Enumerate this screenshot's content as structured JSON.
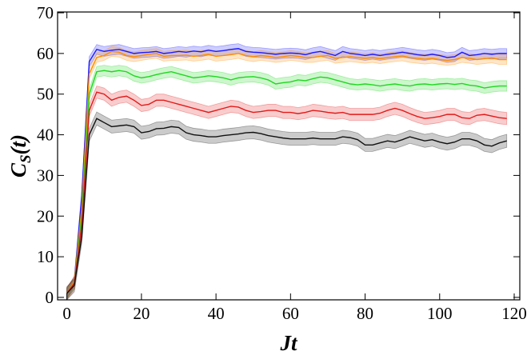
{
  "chart_data": {
    "type": "line",
    "xlabel": "Jt",
    "ylabel": {
      "base": "C",
      "subscript": "S",
      "rest": "(t)"
    },
    "xlim": [
      -2.5,
      121.5
    ],
    "ylim": [
      -0.6,
      70.2
    ],
    "xticks": [
      0,
      20,
      40,
      60,
      80,
      100,
      120
    ],
    "yticks": [
      0,
      10,
      20,
      30,
      40,
      50,
      60,
      70
    ],
    "x": [
      0,
      2,
      4,
      6,
      8,
      10,
      12,
      14,
      16,
      18,
      20,
      22,
      24,
      26,
      28,
      30,
      32,
      34,
      36,
      38,
      40,
      42,
      44,
      46,
      48,
      50,
      52,
      54,
      56,
      58,
      60,
      62,
      64,
      66,
      68,
      70,
      72,
      74,
      76,
      78,
      80,
      82,
      84,
      86,
      88,
      90,
      92,
      94,
      96,
      98,
      100,
      102,
      104,
      106,
      108,
      110,
      112,
      114,
      116,
      118
    ],
    "series": [
      {
        "color": "#1a1aff",
        "error": 1.2,
        "values": [
          1,
          4,
          25,
          58,
          61,
          60.5,
          60.8,
          61,
          60.5,
          60,
          60.2,
          60.3,
          60.5,
          60,
          60.2,
          60.5,
          60.3,
          60.6,
          60.4,
          60.8,
          60.5,
          60.7,
          61,
          61.2,
          60.5,
          60.3,
          60.2,
          60,
          59.8,
          60,
          60.1,
          60,
          59.7,
          60.2,
          60.5,
          60,
          59.5,
          60.5,
          60,
          59.8,
          59.5,
          59.8,
          59.5,
          59.8,
          60,
          60.3,
          60,
          59.7,
          59.5,
          59.8,
          59.5,
          59,
          59.2,
          60.3,
          59.5,
          59.7,
          60,
          59.8,
          60,
          60
        ]
      },
      {
        "color": "#ff8c00",
        "error": 1.2,
        "values": [
          1,
          4,
          22,
          55,
          59,
          59.5,
          60.5,
          60.3,
          59.5,
          59.2,
          59.5,
          59.8,
          60,
          59.3,
          59.5,
          59.5,
          59.6,
          59.3,
          59.5,
          59.8,
          59.3,
          59.5,
          59.7,
          60,
          59.5,
          59.2,
          59.5,
          59.3,
          59,
          59.2,
          59.5,
          59.3,
          59,
          59,
          59.3,
          59.5,
          58.8,
          59,
          59.2,
          59,
          58.8,
          59,
          58.7,
          59,
          59.2,
          59.4,
          59,
          58.8,
          58.6,
          58.8,
          58.5,
          58.3,
          58.5,
          59,
          58.8,
          58.5,
          58.7,
          58.9,
          58.5,
          58.5
        ]
      },
      {
        "color": "#1ed81e",
        "error": 1.3,
        "values": [
          1,
          3.5,
          20,
          50,
          55.5,
          55.8,
          55.5,
          55.8,
          55.5,
          54.5,
          54,
          54.3,
          54.8,
          55.2,
          55.5,
          55,
          54.5,
          54,
          54.2,
          54.5,
          54.3,
          54,
          53.5,
          54,
          54.2,
          54.3,
          54,
          53.5,
          52.5,
          52.8,
          53,
          53.5,
          53.3,
          53.8,
          54.2,
          54,
          53.5,
          53,
          52.5,
          52.3,
          52.5,
          52.3,
          52,
          52.3,
          52.5,
          52.2,
          52,
          52.4,
          52.5,
          52.3,
          52.5,
          52.6,
          52.4,
          52.6,
          52.2,
          52,
          51.5,
          51.8,
          52,
          52
        ]
      },
      {
        "color": "#e21a1a",
        "error": 1.5,
        "values": [
          1,
          3.5,
          18,
          46,
          50.5,
          50,
          48.5,
          49.2,
          49.5,
          48.5,
          47.2,
          47.5,
          48.5,
          48.5,
          48,
          47.5,
          47,
          46.5,
          46,
          45.5,
          46,
          46.5,
          47,
          46.8,
          46,
          45.5,
          45.7,
          46,
          46,
          45.5,
          45.5,
          45.2,
          45.5,
          46,
          45.8,
          45.5,
          45.3,
          45.5,
          45,
          45,
          45,
          45,
          45.3,
          46,
          46.5,
          46,
          45.2,
          44.5,
          44,
          44.2,
          44.5,
          45,
          45,
          44.2,
          44,
          44.8,
          45,
          44.6,
          44.2,
          44
        ]
      },
      {
        "color": "#111111",
        "error": 1.6,
        "values": [
          1,
          3,
          15,
          40,
          44,
          43,
          42,
          42.2,
          42.4,
          42,
          40.5,
          40.8,
          41.5,
          41.6,
          42,
          41.8,
          40.5,
          40,
          39.8,
          39.5,
          39.5,
          39.8,
          40,
          40.2,
          40.5,
          40.6,
          40.3,
          39.8,
          39.5,
          39.2,
          39,
          39,
          39,
          39.2,
          39,
          39,
          39,
          39.5,
          39.3,
          38.8,
          37.5,
          37.5,
          38,
          38.5,
          38.2,
          38.8,
          39.5,
          39,
          38.5,
          38.8,
          38.2,
          37.8,
          38.2,
          39,
          39,
          38.5,
          37.5,
          37.2,
          38,
          38.5
        ]
      }
    ]
  }
}
